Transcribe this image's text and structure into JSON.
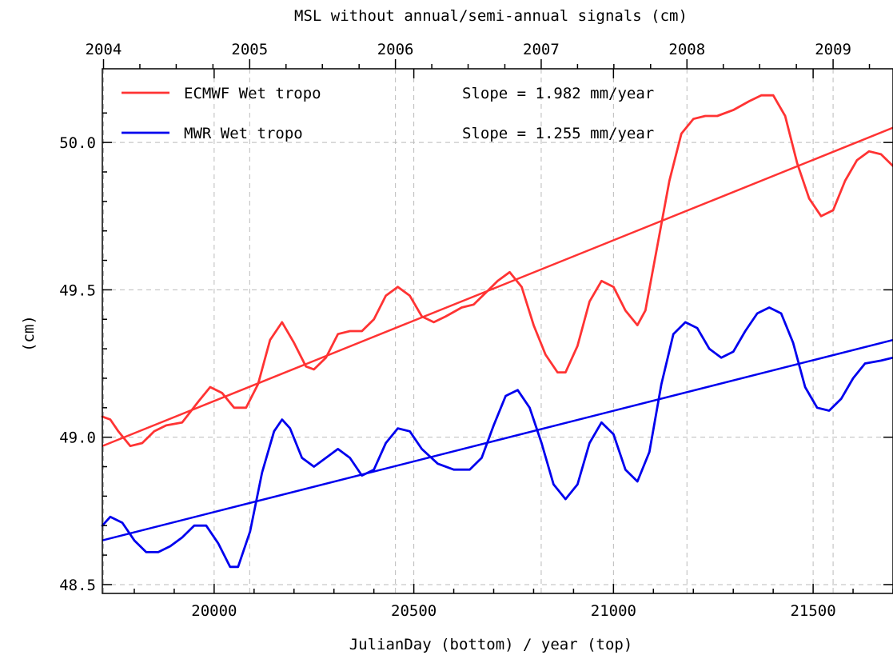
{
  "chart_data": {
    "type": "line",
    "title": "MSL without annual/semi-annual signals (cm)",
    "xlabel": "JulianDay (bottom) / year (top)",
    "ylabel": "(cm)",
    "xlim": [
      19720,
      21700
    ],
    "ylim": [
      48.47,
      50.25
    ],
    "x_ticks": [
      20000,
      20500,
      21000,
      21500
    ],
    "y_ticks": [
      48.5,
      49.0,
      49.5,
      50.0
    ],
    "y_tick_labels": [
      "48.5",
      "49.0",
      "49.5",
      "50.0"
    ],
    "top_axis": {
      "ticks": [
        19723,
        20089,
        20454,
        20819,
        21184,
        21550
      ],
      "labels": [
        "2004",
        "2005",
        "2006",
        "2007",
        "2008",
        "2009"
      ]
    },
    "grid": true,
    "legend_position": "top-left",
    "series": [
      {
        "name": "ECMWF Wet tropo",
        "color": "#ff3333",
        "slope_label": "Slope = 1.982 mm/year",
        "trend": [
          [
            19720,
            48.97
          ],
          [
            21700,
            50.05
          ]
        ],
        "points": [
          [
            19720,
            49.07
          ],
          [
            19740,
            49.06
          ],
          [
            19760,
            49.02
          ],
          [
            19790,
            48.97
          ],
          [
            19820,
            48.98
          ],
          [
            19850,
            49.02
          ],
          [
            19880,
            49.04
          ],
          [
            19920,
            49.05
          ],
          [
            19960,
            49.12
          ],
          [
            19990,
            49.17
          ],
          [
            20020,
            49.15
          ],
          [
            20050,
            49.1
          ],
          [
            20080,
            49.1
          ],
          [
            20110,
            49.18
          ],
          [
            20140,
            49.33
          ],
          [
            20170,
            49.39
          ],
          [
            20200,
            49.32
          ],
          [
            20230,
            49.24
          ],
          [
            20250,
            49.23
          ],
          [
            20280,
            49.27
          ],
          [
            20310,
            49.35
          ],
          [
            20340,
            49.36
          ],
          [
            20370,
            49.36
          ],
          [
            20400,
            49.4
          ],
          [
            20430,
            49.48
          ],
          [
            20460,
            49.51
          ],
          [
            20490,
            49.48
          ],
          [
            20520,
            49.41
          ],
          [
            20550,
            49.39
          ],
          [
            20580,
            49.41
          ],
          [
            20620,
            49.44
          ],
          [
            20650,
            49.45
          ],
          [
            20680,
            49.49
          ],
          [
            20710,
            49.53
          ],
          [
            20740,
            49.56
          ],
          [
            20770,
            49.51
          ],
          [
            20800,
            49.38
          ],
          [
            20830,
            49.28
          ],
          [
            20860,
            49.22
          ],
          [
            20880,
            49.22
          ],
          [
            20910,
            49.31
          ],
          [
            20940,
            49.46
          ],
          [
            20970,
            49.53
          ],
          [
            21000,
            49.51
          ],
          [
            21030,
            49.43
          ],
          [
            21060,
            49.38
          ],
          [
            21080,
            49.43
          ],
          [
            21110,
            49.65
          ],
          [
            21140,
            49.87
          ],
          [
            21170,
            50.03
          ],
          [
            21200,
            50.08
          ],
          [
            21230,
            50.09
          ],
          [
            21260,
            50.09
          ],
          [
            21300,
            50.11
          ],
          [
            21340,
            50.14
          ],
          [
            21370,
            50.16
          ],
          [
            21400,
            50.16
          ],
          [
            21430,
            50.09
          ],
          [
            21460,
            49.93
          ],
          [
            21490,
            49.81
          ],
          [
            21520,
            49.75
          ],
          [
            21550,
            49.77
          ],
          [
            21580,
            49.87
          ],
          [
            21610,
            49.94
          ],
          [
            21640,
            49.97
          ],
          [
            21670,
            49.96
          ],
          [
            21700,
            49.92
          ]
        ]
      },
      {
        "name": "MWR Wet tropo",
        "color": "#0000ee",
        "slope_label": "Slope = 1.255 mm/year",
        "trend": [
          [
            19720,
            48.65
          ],
          [
            21700,
            49.33
          ]
        ],
        "points": [
          [
            19720,
            48.7
          ],
          [
            19740,
            48.73
          ],
          [
            19770,
            48.71
          ],
          [
            19800,
            48.65
          ],
          [
            19830,
            48.61
          ],
          [
            19860,
            48.61
          ],
          [
            19890,
            48.63
          ],
          [
            19920,
            48.66
          ],
          [
            19950,
            48.7
          ],
          [
            19980,
            48.7
          ],
          [
            20010,
            48.64
          ],
          [
            20040,
            48.56
          ],
          [
            20060,
            48.56
          ],
          [
            20090,
            48.68
          ],
          [
            20120,
            48.88
          ],
          [
            20150,
            49.02
          ],
          [
            20170,
            49.06
          ],
          [
            20190,
            49.03
          ],
          [
            20220,
            48.93
          ],
          [
            20250,
            48.9
          ],
          [
            20280,
            48.93
          ],
          [
            20310,
            48.96
          ],
          [
            20340,
            48.93
          ],
          [
            20370,
            48.87
          ],
          [
            20400,
            48.89
          ],
          [
            20430,
            48.98
          ],
          [
            20460,
            49.03
          ],
          [
            20490,
            49.02
          ],
          [
            20520,
            48.96
          ],
          [
            20560,
            48.91
          ],
          [
            20600,
            48.89
          ],
          [
            20640,
            48.89
          ],
          [
            20670,
            48.93
          ],
          [
            20700,
            49.04
          ],
          [
            20730,
            49.14
          ],
          [
            20760,
            49.16
          ],
          [
            20790,
            49.1
          ],
          [
            20820,
            48.98
          ],
          [
            20850,
            48.84
          ],
          [
            20880,
            48.79
          ],
          [
            20910,
            48.84
          ],
          [
            20940,
            48.98
          ],
          [
            20970,
            49.05
          ],
          [
            21000,
            49.01
          ],
          [
            21030,
            48.89
          ],
          [
            21060,
            48.85
          ],
          [
            21090,
            48.95
          ],
          [
            21120,
            49.18
          ],
          [
            21150,
            49.35
          ],
          [
            21180,
            49.39
          ],
          [
            21210,
            49.37
          ],
          [
            21240,
            49.3
          ],
          [
            21270,
            49.27
          ],
          [
            21300,
            49.29
          ],
          [
            21330,
            49.36
          ],
          [
            21360,
            49.42
          ],
          [
            21390,
            49.44
          ],
          [
            21420,
            49.42
          ],
          [
            21450,
            49.32
          ],
          [
            21480,
            49.17
          ],
          [
            21510,
            49.1
          ],
          [
            21540,
            49.09
          ],
          [
            21570,
            49.13
          ],
          [
            21600,
            49.2
          ],
          [
            21630,
            49.25
          ],
          [
            21670,
            49.26
          ],
          [
            21700,
            49.27
          ]
        ]
      }
    ]
  }
}
